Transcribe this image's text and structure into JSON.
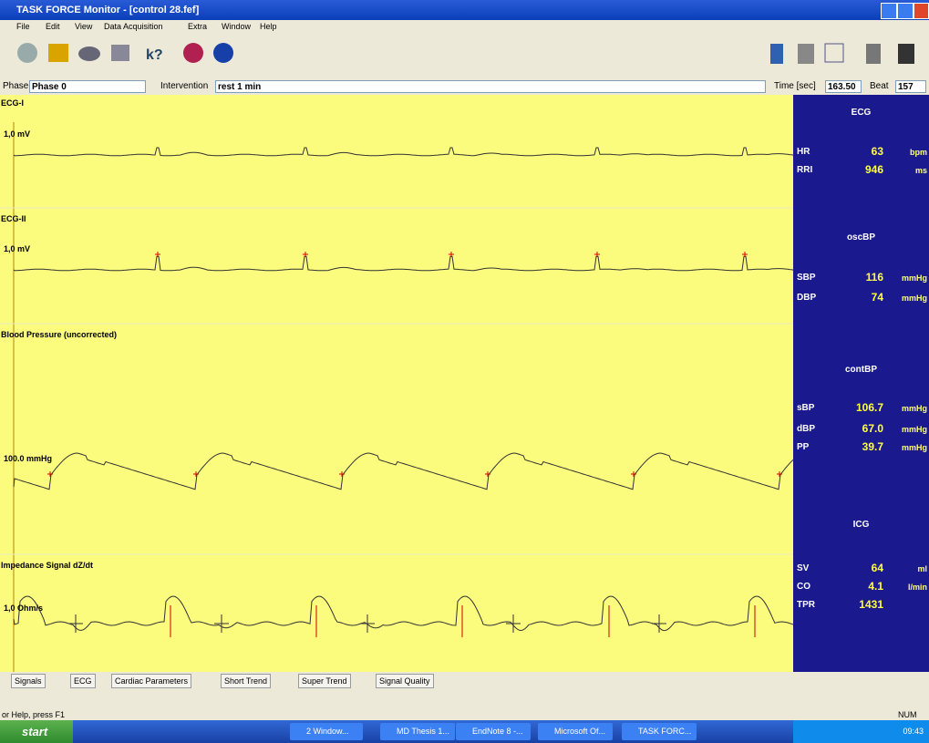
{
  "window": {
    "title": "TASK FORCE Monitor - [control 28.fef]",
    "menu": [
      "File",
      "Edit",
      "View",
      "Data Acquisition",
      "Extra",
      "Window",
      "Help"
    ]
  },
  "controls": {
    "phase_label": "Phase",
    "phase": "Phase 0",
    "intervention_label": "Intervention",
    "intervention": "rest 1 min",
    "time_label": "Time [sec]",
    "time": "163.50",
    "beat_label": "Beat",
    "beat": "157"
  },
  "channels": [
    {
      "name": "ECG-I",
      "scale": "1,0 mV"
    },
    {
      "name": "ECG-II",
      "scale": "1,0 mV"
    },
    {
      "name": "Blood Pressure (uncorrected)",
      "scale": "100.0 mmHg"
    },
    {
      "name": "Impedance Signal dZ/dt",
      "scale": "1,0 Ohm/s"
    }
  ],
  "panels": [
    {
      "title": "ECG",
      "rows": [
        {
          "label": "HR",
          "value": "63",
          "unit": "bpm"
        },
        {
          "label": "RRI",
          "value": "946",
          "unit": "ms"
        }
      ]
    },
    {
      "title": "oscBP",
      "rows": [
        {
          "label": "SBP",
          "value": "116",
          "unit": "mmHg"
        },
        {
          "label": "DBP",
          "value": "74",
          "unit": "mmHg"
        }
      ]
    },
    {
      "title": "contBP",
      "rows": [
        {
          "label": "sBP",
          "value": "106.7",
          "unit": "mmHg"
        },
        {
          "label": "dBP",
          "value": "67.0",
          "unit": "mmHg"
        },
        {
          "label": "PP",
          "value": "39.7",
          "unit": "mmHg"
        }
      ]
    },
    {
      "title": "ICG",
      "rows": [
        {
          "label": "SV",
          "value": "64",
          "unit": "ml"
        },
        {
          "label": "CO",
          "value": "4.1",
          "unit": "l/min"
        },
        {
          "label": "TPR",
          "value": "1431"
        }
      ]
    }
  ],
  "tabs": [
    "Signals",
    "ECG",
    "Cardiac Parameters",
    "Short Trend",
    "Super Trend",
    "Signal Quality"
  ],
  "status": {
    "help": "or Help, press F1",
    "num": "NUM"
  },
  "taskbar": {
    "start": "start",
    "items": [
      "2 Window...",
      "MD Thesis 1...",
      "EndNote 8 -...",
      "Microsoft Of...",
      "TASK FORC..."
    ],
    "clock": "09:43"
  }
}
